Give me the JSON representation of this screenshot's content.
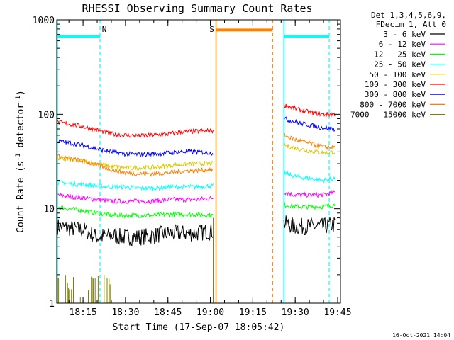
{
  "chart_data": {
    "type": "line",
    "title": "RHESSI Observing Summary Count Rates",
    "xlabel": "Start Time (17-Sep-07 18:05:42)",
    "ylabel_main": "Count Rate (s",
    "ylabel_sup1": "-1",
    "ylabel_mid": " detector",
    "ylabel_sup2": "-1",
    "ylabel_end": ")",
    "yscale": "log",
    "ylim": [
      1,
      1000
    ],
    "xlim": [
      "18:05:42",
      "19:46:00"
    ],
    "x_ticks": [
      "18:15",
      "18:30",
      "18:45",
      "19:00",
      "19:15",
      "19:30",
      "19:45"
    ],
    "y_ticks": [
      1,
      10,
      100,
      1000
    ],
    "y_tick_labels": [
      "1",
      "10",
      "100",
      "1000"
    ],
    "legend": {
      "position": "right",
      "header": [
        "Det 1,3,4,5,6,9,",
        "FDecim 1, Att 0"
      ]
    },
    "series": [
      {
        "name": "3 - 6 keV",
        "color": "#000000",
        "x": [
          "18:06",
          "18:10",
          "18:15",
          "18:20",
          "18:25",
          "18:30",
          "18:35",
          "18:40",
          "18:45",
          "18:50",
          "18:55",
          "19:01",
          "19:26",
          "19:30",
          "19:35",
          "19:40",
          "19:44"
        ],
        "values": [
          6.5,
          6.2,
          6.0,
          5.0,
          5.2,
          5.0,
          5.0,
          5.2,
          5.5,
          5.5,
          5.5,
          5.8,
          7.0,
          6.5,
          6.5,
          6.5,
          6.8
        ]
      },
      {
        "name": "6 - 12 keV",
        "color": "#ff00ff",
        "x": [
          "18:06",
          "18:10",
          "18:15",
          "18:20",
          "18:25",
          "18:30",
          "18:35",
          "18:40",
          "18:45",
          "18:50",
          "18:55",
          "19:01",
          "19:26",
          "19:30",
          "19:35",
          "19:40",
          "19:44"
        ],
        "values": [
          14,
          13.5,
          13,
          12.5,
          12,
          12,
          12,
          12,
          12.5,
          12.5,
          12.5,
          13,
          15,
          14,
          14,
          14,
          15
        ]
      },
      {
        "name": "12 - 25 keV",
        "color": "#00ff00",
        "x": [
          "18:06",
          "18:10",
          "18:15",
          "18:20",
          "18:25",
          "18:30",
          "18:35",
          "18:40",
          "18:45",
          "18:50",
          "18:55",
          "19:01",
          "19:26",
          "19:30",
          "19:35",
          "19:40",
          "19:44"
        ],
        "values": [
          10.5,
          10,
          9.5,
          9,
          8.5,
          8.5,
          8.5,
          8.5,
          8.7,
          8.7,
          8.7,
          8.5,
          11,
          10.5,
          10.5,
          10.5,
          11
        ]
      },
      {
        "name": "25 - 50 keV",
        "color": "#00ffff",
        "x": [
          "18:06",
          "18:10",
          "18:15",
          "18:20",
          "18:25",
          "18:30",
          "18:35",
          "18:40",
          "18:45",
          "18:50",
          "18:55",
          "19:01",
          "19:26",
          "19:30",
          "19:35",
          "19:40",
          "19:44"
        ],
        "values": [
          19,
          18.5,
          18,
          17.5,
          17,
          17,
          16.5,
          16.5,
          17,
          17,
          17,
          17.5,
          24,
          22,
          21,
          20,
          21
        ]
      },
      {
        "name": "50 - 100 keV",
        "color": "#d8c800",
        "x": [
          "18:06",
          "18:10",
          "18:15",
          "18:20",
          "18:25",
          "18:30",
          "18:35",
          "18:40",
          "18:45",
          "18:50",
          "18:55",
          "19:01",
          "19:26",
          "19:30",
          "19:35",
          "19:40",
          "19:44"
        ],
        "values": [
          34,
          33,
          32,
          30,
          28,
          27,
          27,
          27.5,
          28.5,
          29.5,
          30,
          30,
          47,
          44,
          41,
          39,
          40
        ]
      },
      {
        "name": "100 - 300 keV",
        "color": "#ff0000",
        "x": [
          "18:06",
          "18:10",
          "18:15",
          "18:20",
          "18:25",
          "18:30",
          "18:35",
          "18:40",
          "18:45",
          "18:50",
          "18:55",
          "19:01",
          "19:26",
          "19:30",
          "19:35",
          "19:40",
          "19:44"
        ],
        "values": [
          82,
          79,
          74,
          68,
          62,
          60,
          59,
          60,
          62,
          65,
          66,
          67,
          125,
          115,
          105,
          100,
          100
        ]
      },
      {
        "name": "300 - 800 keV",
        "color": "#0000ff",
        "x": [
          "18:06",
          "18:10",
          "18:15",
          "18:20",
          "18:25",
          "18:30",
          "18:35",
          "18:40",
          "18:45",
          "18:50",
          "18:55",
          "19:01",
          "19:26",
          "19:30",
          "19:35",
          "19:40",
          "19:44"
        ],
        "values": [
          52,
          50,
          47,
          43,
          40,
          38,
          37.5,
          38,
          39,
          40,
          40,
          39,
          90,
          83,
          77,
          72,
          70
        ]
      },
      {
        "name": "800 - 7000 keV",
        "color": "#ff8000",
        "x": [
          "18:06",
          "18:10",
          "18:15",
          "18:20",
          "18:25",
          "18:30",
          "18:35",
          "18:40",
          "18:45",
          "18:50",
          "18:55",
          "19:01",
          "19:26",
          "19:30",
          "19:35",
          "19:40",
          "19:44"
        ],
        "values": [
          36,
          34,
          32,
          29,
          26,
          24,
          23.5,
          23.5,
          24,
          25,
          25.5,
          26,
          60,
          54,
          49,
          45,
          45
        ]
      },
      {
        "name": "7000 - 15000 keV",
        "color": "#808000",
        "x": [
          "18:06",
          "18:15",
          "18:25",
          "19:01",
          "19:25",
          "19:44"
        ],
        "values": [
          1.5,
          1.2,
          1,
          1.5,
          1.2,
          1.5
        ]
      }
    ],
    "annotations": [
      {
        "label": "N",
        "color": "#00ffff",
        "x_start": "18:05:42",
        "x_end": "18:21:00",
        "y": 670
      },
      {
        "label": "S",
        "color": "#ff8000",
        "x_start": "19:02:00",
        "x_end": "19:22:00",
        "y": 780
      },
      {
        "label": "",
        "color": "#00ffff",
        "x_start": "19:26:00",
        "x_end": "19:42:00",
        "y": 670
      }
    ],
    "footer_date": "16-Oct-2021 14:04"
  }
}
